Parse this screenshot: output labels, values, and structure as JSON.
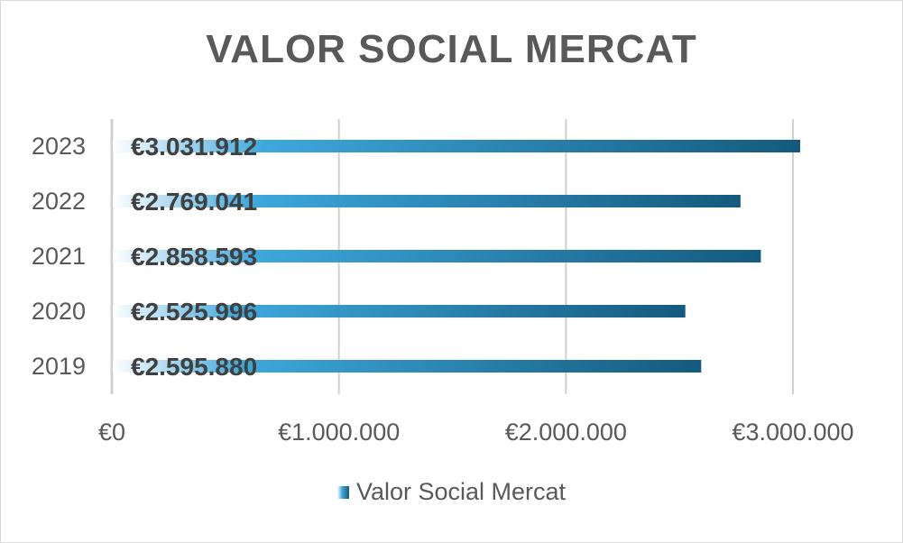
{
  "chart_data": {
    "type": "bar",
    "orientation": "horizontal",
    "title": "VALOR SOCIAL MERCAT",
    "categories": [
      "2023",
      "2022",
      "2021",
      "2020",
      "2019"
    ],
    "series": [
      {
        "name": "Valor Social Mercat",
        "values": [
          3031912,
          2769041,
          2858593,
          2525996,
          2595880
        ],
        "labels": [
          "€3.031.912",
          "€2.769.041",
          "€2.858.593",
          "€2.525.996",
          "€2.595.880"
        ]
      }
    ],
    "x_ticks": [
      0,
      1000000,
      2000000,
      3000000
    ],
    "x_tick_labels": [
      "€0",
      "€1.000.000",
      "€2.000.000",
      "€3.000.000"
    ],
    "xlim": [
      0,
      3000000
    ],
    "grid": "vertical",
    "legend_position": "bottom",
    "colors": {
      "gradient_start": "#ffffff",
      "gradient_mid": "#3ea8dc",
      "gradient_end": "#145a7e",
      "gridline": "#d0d0d0",
      "text": "#595959"
    }
  }
}
